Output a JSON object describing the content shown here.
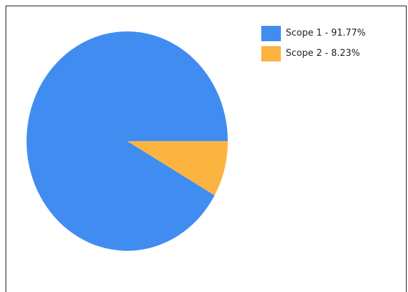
{
  "chart_data": {
    "type": "pie",
    "slices": [
      {
        "name": "Scope 1",
        "value": 91.77,
        "label": "Scope 1 - 91.77%",
        "color": "#418cf0"
      },
      {
        "name": "Scope 2",
        "value": 8.23,
        "label": "Scope 2 - 8.23%",
        "color": "#fcb441"
      }
    ],
    "legend_position": "top-right"
  }
}
